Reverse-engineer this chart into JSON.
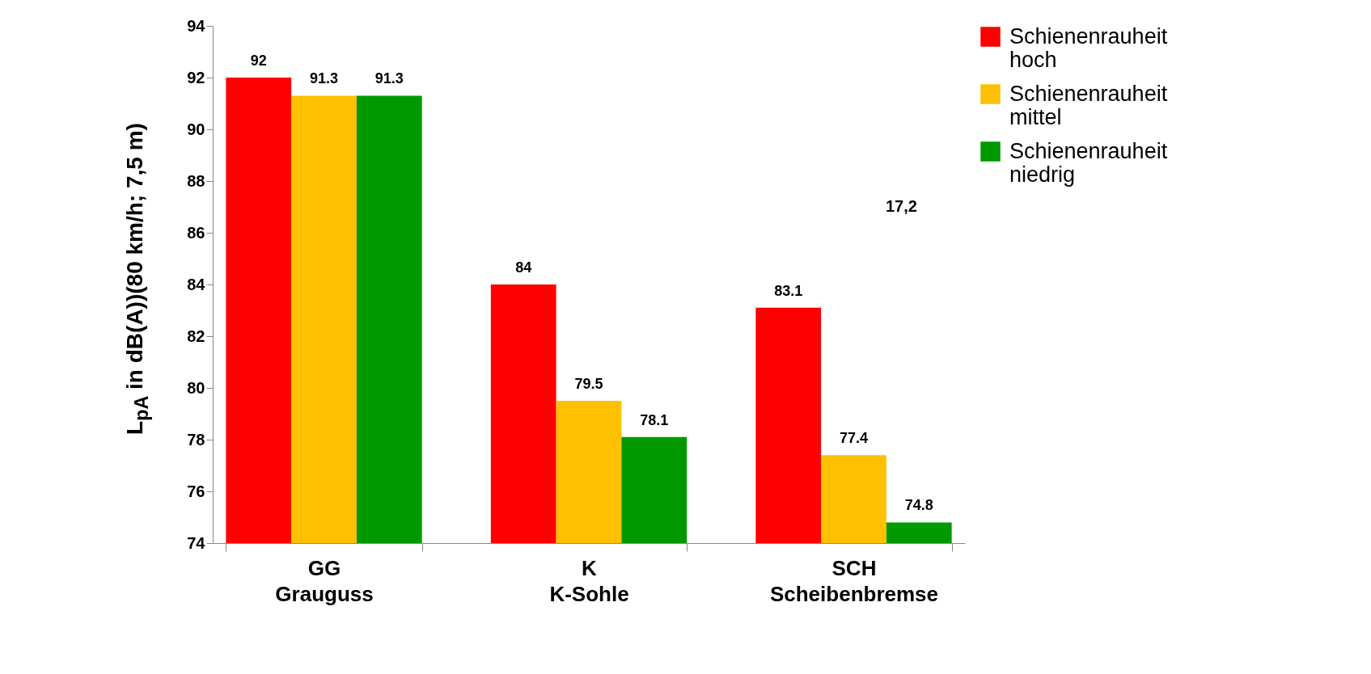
{
  "chart_data": {
    "type": "bar",
    "ylabel": "L$_{pA}$ in dB(A))(80 km/h; 7,5 m)",
    "categories": [
      "GG Grauguss",
      "K K-Sohle",
      "SCH Scheibenbremse"
    ],
    "series": [
      {
        "name": "Schienenrauheit hoch",
        "color": "#ff0000",
        "values": [
          92,
          84,
          83.1
        ]
      },
      {
        "name": "Schienenrauheit mittel",
        "color": "#ffc000",
        "values": [
          91.3,
          79.5,
          77.4
        ]
      },
      {
        "name": "Schienenrauheit niedrig",
        "color": "#009900",
        "values": [
          91.3,
          78.1,
          74.8
        ]
      }
    ],
    "ylim": [
      74,
      94
    ],
    "yticks": [
      74,
      76,
      78,
      80,
      82,
      84,
      86,
      88,
      90,
      92,
      94
    ],
    "data_labels": true,
    "legend": "right",
    "grid": false,
    "annotations": [
      "17,2"
    ]
  }
}
